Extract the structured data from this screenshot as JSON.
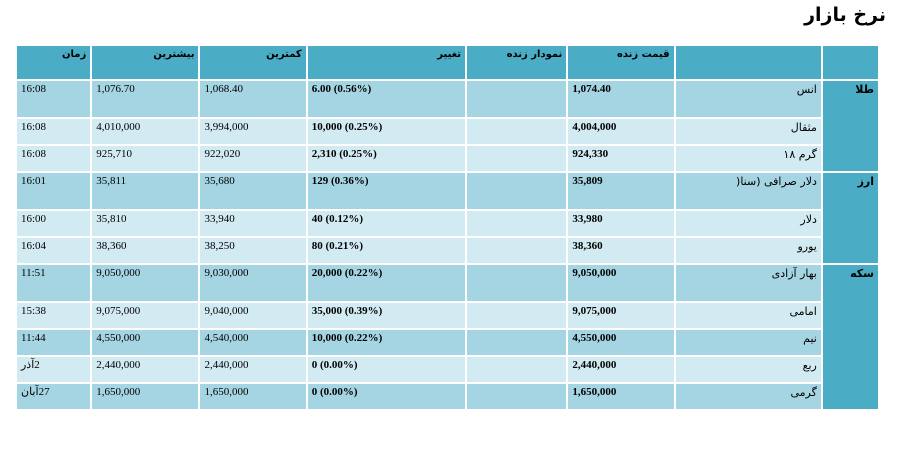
{
  "page": {
    "title": "نرخ بازار"
  },
  "columns": {
    "category": "",
    "name": "",
    "live_price": "قیمت زنده",
    "live_chart": "نمودار زنده",
    "change": "تغییر",
    "low": "کمترین",
    "high": "بیشترین",
    "time": "زمان"
  },
  "groups": [
    {
      "label": "طلا",
      "rows": [
        {
          "name": "انس",
          "price": "1,074.40",
          "change": "(0.56%) 6.00",
          "low": "1,068.40",
          "high": "1,076.70",
          "time": "16:08"
        },
        {
          "name": "مثقال",
          "price": "4,004,000",
          "change": "(0.25%) 10,000",
          "low": "3,994,000",
          "high": "4,010,000",
          "time": "16:08"
        },
        {
          "name": "گرم ۱۸",
          "price": "924,330",
          "change": "(0.25%) 2,310",
          "low": "922,020",
          "high": "925,710",
          "time": "16:08"
        }
      ]
    },
    {
      "label": "ارز",
      "rows": [
        {
          "name": "دلار صرافی (سنا(",
          "price": "35,809",
          "change": "(0.36%) 129",
          "low": "35,680",
          "high": "35,811",
          "time": "16:01"
        },
        {
          "name": "دلار",
          "price": "33,980",
          "change": "(0.12%) 40",
          "low": "33,940",
          "high": "35,810",
          "time": "16:00"
        },
        {
          "name": "یورو",
          "price": "38,360",
          "change": "(0.21%) 80",
          "low": "38,250",
          "high": "38,360",
          "time": "16:04"
        }
      ]
    },
    {
      "label": "سکه",
      "rows": [
        {
          "name": "بهار آزادی",
          "price": "9,050,000",
          "change": "(0.22%) 20,000",
          "low": "9,030,000",
          "high": "9,050,000",
          "time": "11:51"
        },
        {
          "name": "امامی",
          "price": "9,075,000",
          "change": "(0.39%) 35,000",
          "low": "9,040,000",
          "high": "9,075,000",
          "time": "15:38"
        },
        {
          "name": "نیم",
          "price": "4,550,000",
          "change": "(0.22%) 10,000",
          "low": "4,540,000",
          "high": "4,550,000",
          "time": "11:44"
        },
        {
          "name": "ربع",
          "price": "2,440,000",
          "change": "(0.00%) 0",
          "low": "2,440,000",
          "high": "2,440,000",
          "time": "2آذر"
        },
        {
          "name": "گرمی",
          "price": "1,650,000",
          "change": "(0.00%) 0",
          "low": "1,650,000",
          "high": "1,650,000",
          "time": "27آبان"
        }
      ]
    }
  ],
  "colors": {
    "header": "#4bacc6",
    "row_dark": "#a5d5e2",
    "row_light": "#d2eaf1"
  }
}
